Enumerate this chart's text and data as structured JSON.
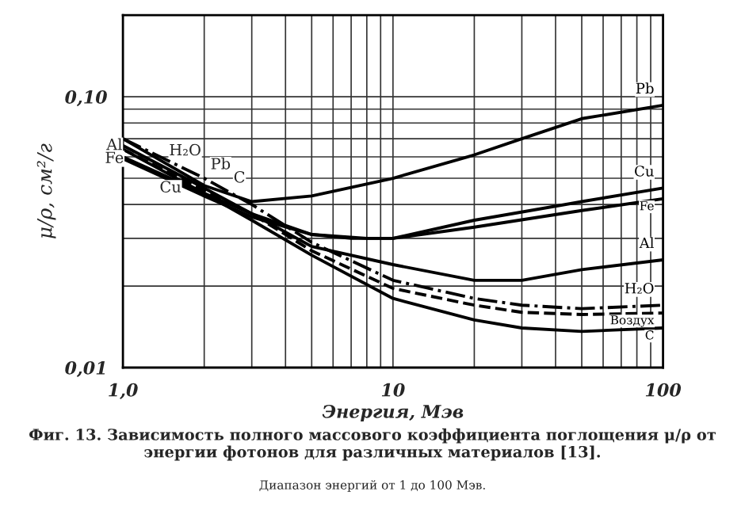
{
  "chart_data": {
    "type": "line",
    "xlabel": "Энергия, Мэв",
    "ylabel": "μ/ρ, см²/г",
    "log": "xy",
    "grid": true,
    "legend": false,
    "xlim": [
      1,
      100
    ],
    "ylim": [
      0.01,
      0.2
    ],
    "xticks": [
      {
        "value": 1,
        "label": "1,0"
      },
      10,
      100
    ],
    "yticks": [
      {
        "value": 0.01,
        "label": "0,01"
      },
      {
        "value": 0.1,
        "label": "0,10"
      }
    ],
    "series": [
      {
        "name": "Pb",
        "color": "#000000",
        "line_style": "solid",
        "x": [
          1,
          2,
          3,
          5,
          10,
          20,
          30,
          50,
          100
        ],
        "values": [
          0.07,
          0.047,
          0.041,
          0.043,
          0.05,
          0.061,
          0.07,
          0.083,
          0.093
        ]
      },
      {
        "name": "Cu",
        "color": "#000000",
        "line_style": "solid",
        "x": [
          1,
          2,
          3,
          5,
          8,
          10,
          20,
          50,
          100
        ],
        "values": [
          0.06,
          0.044,
          0.037,
          0.031,
          0.03,
          0.03,
          0.035,
          0.041,
          0.046
        ]
      },
      {
        "name": "Fe",
        "color": "#000000",
        "line_style": "solid",
        "x": [
          1,
          2,
          3,
          5,
          7,
          10,
          20,
          50,
          100
        ],
        "values": [
          0.059,
          0.043,
          0.036,
          0.031,
          0.03,
          0.03,
          0.033,
          0.038,
          0.042
        ]
      },
      {
        "name": "Al",
        "color": "#000000",
        "line_style": "solid",
        "x": [
          1,
          2,
          3,
          5,
          10,
          20,
          30,
          50,
          100
        ],
        "values": [
          0.066,
          0.046,
          0.037,
          0.028,
          0.024,
          0.021,
          0.021,
          0.023,
          0.025
        ]
      },
      {
        "name": "H₂O",
        "color": "#000000",
        "line_style": "dashdot",
        "x": [
          1,
          2,
          3,
          5,
          10,
          20,
          30,
          50,
          100
        ],
        "values": [
          0.07,
          0.05,
          0.04,
          0.029,
          0.021,
          0.018,
          0.017,
          0.0165,
          0.017
        ]
      },
      {
        "name": "Воздух",
        "color": "#000000",
        "line_style": "dashed",
        "x": [
          1,
          2,
          3,
          5,
          10,
          20,
          30,
          50,
          100
        ],
        "values": [
          0.064,
          0.045,
          0.037,
          0.027,
          0.0196,
          0.017,
          0.016,
          0.0157,
          0.0159
        ]
      },
      {
        "name": "C",
        "color": "#000000",
        "line_style": "solid",
        "x": [
          1,
          2,
          3,
          5,
          10,
          20,
          30,
          50,
          100
        ],
        "values": [
          0.064,
          0.044,
          0.035,
          0.026,
          0.018,
          0.015,
          0.014,
          0.0136,
          0.014
        ]
      }
    ],
    "annotations": [
      {
        "text": "Al",
        "x": 0.93,
        "y": 0.066
      },
      {
        "text": "Fe",
        "x": 0.93,
        "y": 0.059
      },
      {
        "text": "H₂O",
        "x": 1.7,
        "y": 0.063
      },
      {
        "text": "Pb",
        "x": 2.3,
        "y": 0.056
      },
      {
        "text": "C",
        "x": 2.7,
        "y": 0.05
      },
      {
        "text": "Cu",
        "x": 1.5,
        "y": 0.046
      },
      "Фиг. 13. Зависимость полного массового коэффициента поглощения μ/ρ от энергии фотонов для различных материалов [13].",
      "Диапазон энергий от 1 до 100 Мэв."
    ]
  }
}
